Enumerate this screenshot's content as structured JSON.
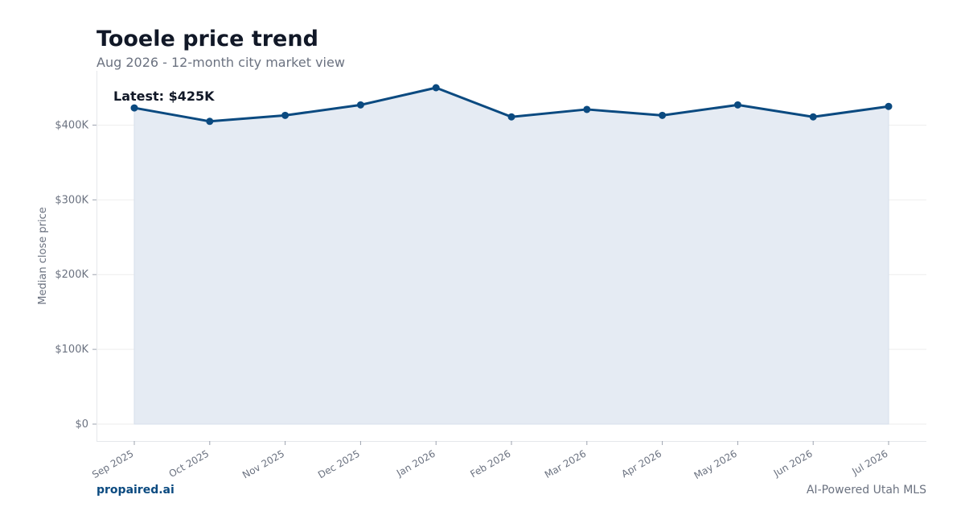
{
  "header": {
    "title": "Tooele price trend",
    "subtitle": "Aug 2026 - 12-month city market view"
  },
  "footer": {
    "brand": "propaired.ai",
    "tagline": "AI-Powered Utah MLS"
  },
  "colors": {
    "line": "#0b4a80",
    "fill": "#e5ebf3",
    "grid": "#eeeeee",
    "axis_text": "#6b7280",
    "title": "#111827"
  },
  "chart_data": {
    "type": "area",
    "title": "Tooele price trend",
    "subtitle": "Aug 2026 - 12-month city market view",
    "xlabel": "",
    "ylabel": "Median close price",
    "categories": [
      "Sep 2025",
      "Oct 2025",
      "Nov 2025",
      "Dec 2025",
      "Jan 2026",
      "Feb 2026",
      "Mar 2026",
      "Apr 2026",
      "May 2026",
      "Jun 2026",
      "Jul 2026"
    ],
    "series": [
      {
        "values": [
          423000,
          405000,
          413000,
          427000,
          450000,
          411000,
          421000,
          413000,
          427000,
          411000,
          425000
        ]
      }
    ],
    "ylim": [
      0,
      450000
    ],
    "yticks": [
      0,
      100000,
      200000,
      300000,
      400000
    ],
    "ytick_labels": [
      "$0",
      "$100K",
      "$200K",
      "$300K",
      "$400K"
    ],
    "annotation": "Latest: $425K",
    "grid": true
  }
}
